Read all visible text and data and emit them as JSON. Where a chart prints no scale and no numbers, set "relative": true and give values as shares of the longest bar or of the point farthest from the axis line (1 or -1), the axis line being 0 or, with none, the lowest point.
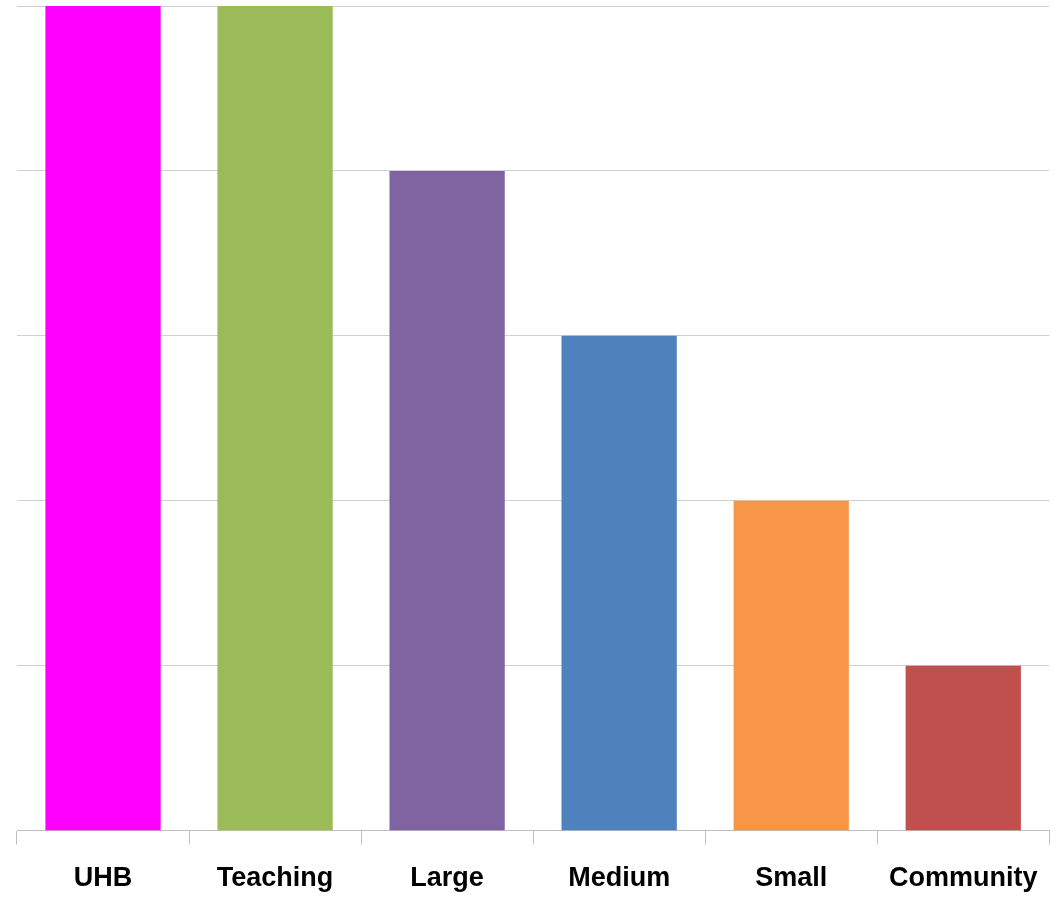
{
  "chart_data": {
    "type": "bar",
    "relative": true,
    "categories": [
      "UHB",
      "Teaching",
      "Large",
      "Medium",
      "Small",
      "Community"
    ],
    "values": [
      1,
      1,
      0.8,
      0.6,
      0.4,
      0.2
    ],
    "colors": [
      "#ff00ff",
      "#9bbb59",
      "#8064a2",
      "#4f81bd",
      "#f79646",
      "#c0504d"
    ],
    "grid": "y",
    "legend": false
  }
}
